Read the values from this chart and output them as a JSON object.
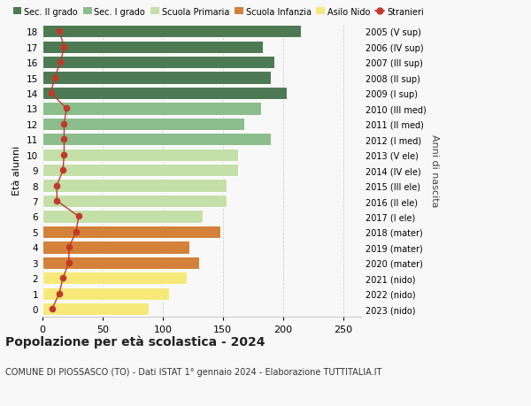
{
  "ages": [
    0,
    1,
    2,
    3,
    4,
    5,
    6,
    7,
    8,
    9,
    10,
    11,
    12,
    13,
    14,
    15,
    16,
    17,
    18
  ],
  "values": [
    88,
    105,
    120,
    130,
    122,
    148,
    133,
    153,
    153,
    163,
    163,
    190,
    168,
    182,
    203,
    190,
    193,
    183,
    215
  ],
  "stranieri": [
    8,
    14,
    17,
    22,
    22,
    28,
    30,
    12,
    12,
    17,
    18,
    18,
    18,
    20,
    7,
    10,
    15,
    18,
    14
  ],
  "right_labels": [
    "2023 (nido)",
    "2022 (nido)",
    "2021 (nido)",
    "2020 (mater)",
    "2019 (mater)",
    "2018 (mater)",
    "2017 (I ele)",
    "2016 (II ele)",
    "2015 (III ele)",
    "2014 (IV ele)",
    "2013 (V ele)",
    "2012 (I med)",
    "2011 (II med)",
    "2010 (III med)",
    "2009 (I sup)",
    "2008 (II sup)",
    "2007 (III sup)",
    "2006 (IV sup)",
    "2005 (V sup)"
  ],
  "bar_colors": [
    "#f7e87a",
    "#f7e87a",
    "#f7e87a",
    "#d4813a",
    "#d4813a",
    "#d4813a",
    "#c5dfa8",
    "#c5dfa8",
    "#c5dfa8",
    "#c5dfa8",
    "#c5dfa8",
    "#8cbd8c",
    "#8cbd8c",
    "#8cbd8c",
    "#4d7a52",
    "#4d7a52",
    "#4d7a52",
    "#4d7a52",
    "#4d7a52"
  ],
  "title": "Popolazione per età scolastica - 2024",
  "subtitle": "COMUNE DI PIOSSASCO (TO) - Dati ISTAT 1° gennaio 2024 - Elaborazione TUTTITALIA.IT",
  "ylabel": "Età alunni",
  "right_ylabel": "Anni di nascita",
  "xlim": [
    0,
    265
  ],
  "xticks": [
    0,
    50,
    100,
    150,
    200,
    250
  ],
  "legend_labels": [
    "Sec. II grado",
    "Sec. I grado",
    "Scuola Primaria",
    "Scuola Infanzia",
    "Asilo Nido",
    "Stranieri"
  ],
  "legend_colors": [
    "#4d7a52",
    "#8cbd8c",
    "#c5dfa8",
    "#d4813a",
    "#f7e87a",
    "#c0392b"
  ],
  "stranieri_color": "#c0392b",
  "background_color": "#f8f8f8",
  "grid_color": "#cccccc"
}
